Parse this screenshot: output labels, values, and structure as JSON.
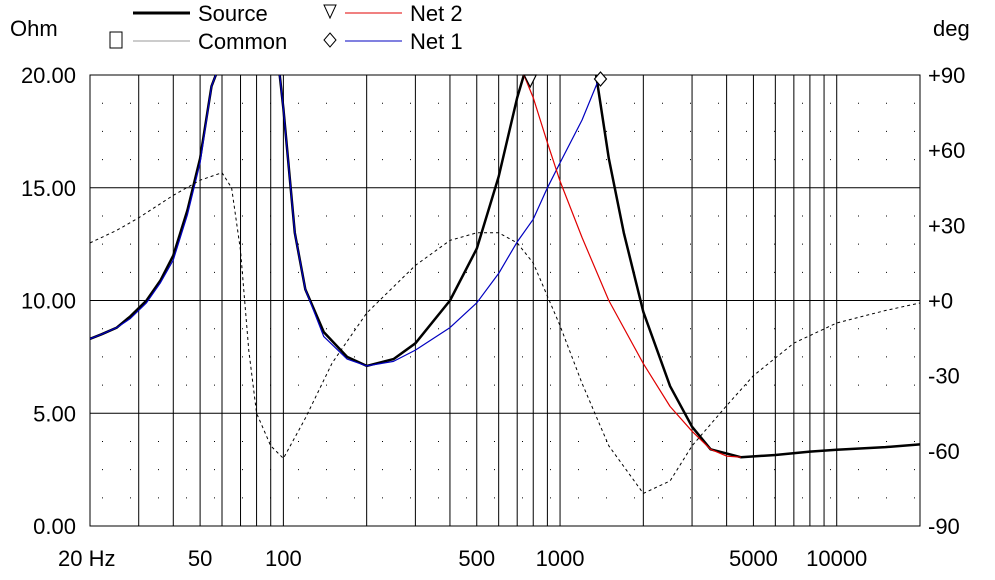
{
  "chart_data": {
    "type": "line",
    "title": "",
    "y_unit_left": "Ohm",
    "y_unit_right": "deg",
    "x_scale": "log",
    "xlim": [
      20,
      20000
    ],
    "ylim_left": [
      0,
      20
    ],
    "ylim_right": [
      -90,
      90
    ],
    "grid": true,
    "x_ticks": [
      {
        "value": 20,
        "label": "20 Hz"
      },
      {
        "value": 50,
        "label": "50"
      },
      {
        "value": 100,
        "label": "100"
      },
      {
        "value": 500,
        "label": "500"
      },
      {
        "value": 1000,
        "label": "1000"
      },
      {
        "value": 5000,
        "label": "5000"
      },
      {
        "value": 10000,
        "label": "10000"
      }
    ],
    "y_ticks_left": [
      "0.00",
      "5.00",
      "10.00",
      "15.00",
      "20.00"
    ],
    "y_ticks_right": [
      "-90",
      "-60",
      "-30",
      "+0",
      "+30",
      "+60",
      "+90"
    ],
    "legend": [
      {
        "name": "Source",
        "color": "#000000",
        "style": "thick solid",
        "marker": ""
      },
      {
        "name": "Common",
        "color": "#999999",
        "style": "thin solid",
        "marker": "square"
      },
      {
        "name": "Net 2",
        "color": "#e00000",
        "style": "thin solid",
        "marker": "triangle-down"
      },
      {
        "name": "Net 1",
        "color": "#0000c0",
        "style": "thin solid",
        "marker": "diamond"
      }
    ],
    "series": [
      {
        "name": "Source",
        "color": "#000000",
        "axis": "left",
        "points": [
          [
            20,
            8.3
          ],
          [
            22,
            8.5
          ],
          [
            25,
            8.8
          ],
          [
            28,
            9.3
          ],
          [
            32,
            10
          ],
          [
            36,
            10.9
          ],
          [
            40,
            12
          ],
          [
            45,
            14
          ],
          [
            50,
            16.3
          ],
          [
            55,
            19.5
          ],
          [
            57,
            20
          ]
        ]
      },
      {
        "color": "#000000",
        "axis": "left",
        "points": [
          [
            97,
            20
          ],
          [
            100,
            18.5
          ],
          [
            110,
            13
          ],
          [
            120,
            10.5
          ],
          [
            140,
            8.6
          ],
          [
            170,
            7.5
          ],
          [
            200,
            7.1
          ],
          [
            250,
            7.4
          ],
          [
            300,
            8.1
          ],
          [
            400,
            10
          ],
          [
            500,
            12.3
          ],
          [
            600,
            15.5
          ],
          [
            700,
            19
          ],
          [
            740,
            20
          ]
        ]
      },
      {
        "color": "#000000",
        "axis": "left",
        "points": [
          [
            1350,
            20
          ],
          [
            1500,
            16.3
          ],
          [
            1700,
            13
          ],
          [
            2000,
            9.5
          ],
          [
            2500,
            6.2
          ],
          [
            3000,
            4.4
          ],
          [
            3500,
            3.4
          ],
          [
            4500,
            3.05
          ],
          [
            6000,
            3.15
          ],
          [
            8000,
            3.3
          ],
          [
            10000,
            3.38
          ],
          [
            15000,
            3.5
          ],
          [
            20000,
            3.62
          ]
        ]
      },
      {
        "name": "Net 1",
        "color": "#0000c0",
        "axis": "left",
        "points": [
          [
            20,
            8.3
          ],
          [
            22,
            8.5
          ],
          [
            25,
            8.8
          ],
          [
            28,
            9.2
          ],
          [
            32,
            9.9
          ],
          [
            36,
            10.8
          ],
          [
            40,
            11.8
          ],
          [
            45,
            13.8
          ],
          [
            50,
            16.1
          ],
          [
            55,
            19.5
          ],
          [
            57,
            20
          ]
        ]
      },
      {
        "color": "#0000c0",
        "axis": "left",
        "points": [
          [
            97,
            20
          ],
          [
            100,
            18.5
          ],
          [
            110,
            13
          ],
          [
            120,
            10.5
          ],
          [
            140,
            8.4
          ],
          [
            170,
            7.4
          ],
          [
            200,
            7.1
          ],
          [
            250,
            7.3
          ],
          [
            300,
            7.8
          ],
          [
            400,
            8.8
          ],
          [
            500,
            9.9
          ],
          [
            600,
            11.2
          ],
          [
            700,
            12.6
          ],
          [
            800,
            13.6
          ],
          [
            900,
            15
          ],
          [
            1000,
            16.1
          ],
          [
            1200,
            18
          ],
          [
            1400,
            20
          ]
        ]
      },
      {
        "name": "Net 2",
        "color": "#e00000",
        "axis": "left",
        "points": [
          [
            740,
            20
          ],
          [
            800,
            19
          ],
          [
            900,
            17
          ],
          [
            1000,
            15.3
          ],
          [
            1200,
            12.8
          ],
          [
            1500,
            10
          ],
          [
            2000,
            7.2
          ],
          [
            2500,
            5.3
          ],
          [
            3000,
            4.2
          ],
          [
            3500,
            3.4
          ],
          [
            4000,
            3.1
          ],
          [
            4500,
            3.05
          ]
        ]
      },
      {
        "name": "Common",
        "color": "#000000",
        "axis": "right",
        "dashed": true,
        "points": [
          [
            20,
            23
          ],
          [
            25,
            28
          ],
          [
            30,
            33
          ],
          [
            40,
            42
          ],
          [
            50,
            48
          ],
          [
            60,
            51
          ],
          [
            65,
            45
          ],
          [
            70,
            20
          ],
          [
            75,
            -20
          ],
          [
            80,
            -45
          ],
          [
            90,
            -58
          ],
          [
            100,
            -63
          ],
          [
            120,
            -47
          ],
          [
            150,
            -25
          ],
          [
            200,
            -5
          ],
          [
            300,
            14
          ],
          [
            400,
            24
          ],
          [
            500,
            27
          ],
          [
            600,
            27
          ],
          [
            700,
            23
          ],
          [
            800,
            15
          ],
          [
            1000,
            -10
          ],
          [
            1200,
            -33
          ],
          [
            1500,
            -58
          ],
          [
            2000,
            -77
          ],
          [
            2500,
            -72
          ],
          [
            3000,
            -58
          ],
          [
            4000,
            -42
          ],
          [
            5000,
            -30
          ],
          [
            7000,
            -17
          ],
          [
            10000,
            -9
          ],
          [
            15000,
            -4
          ],
          [
            20000,
            -1
          ]
        ]
      }
    ],
    "annotations": [
      {
        "marker": "triangle-down",
        "series": "Net 2",
        "x": 780,
        "y": 20
      },
      {
        "marker": "diamond",
        "series": "Net 1",
        "x": 1400,
        "y": 20
      }
    ]
  }
}
